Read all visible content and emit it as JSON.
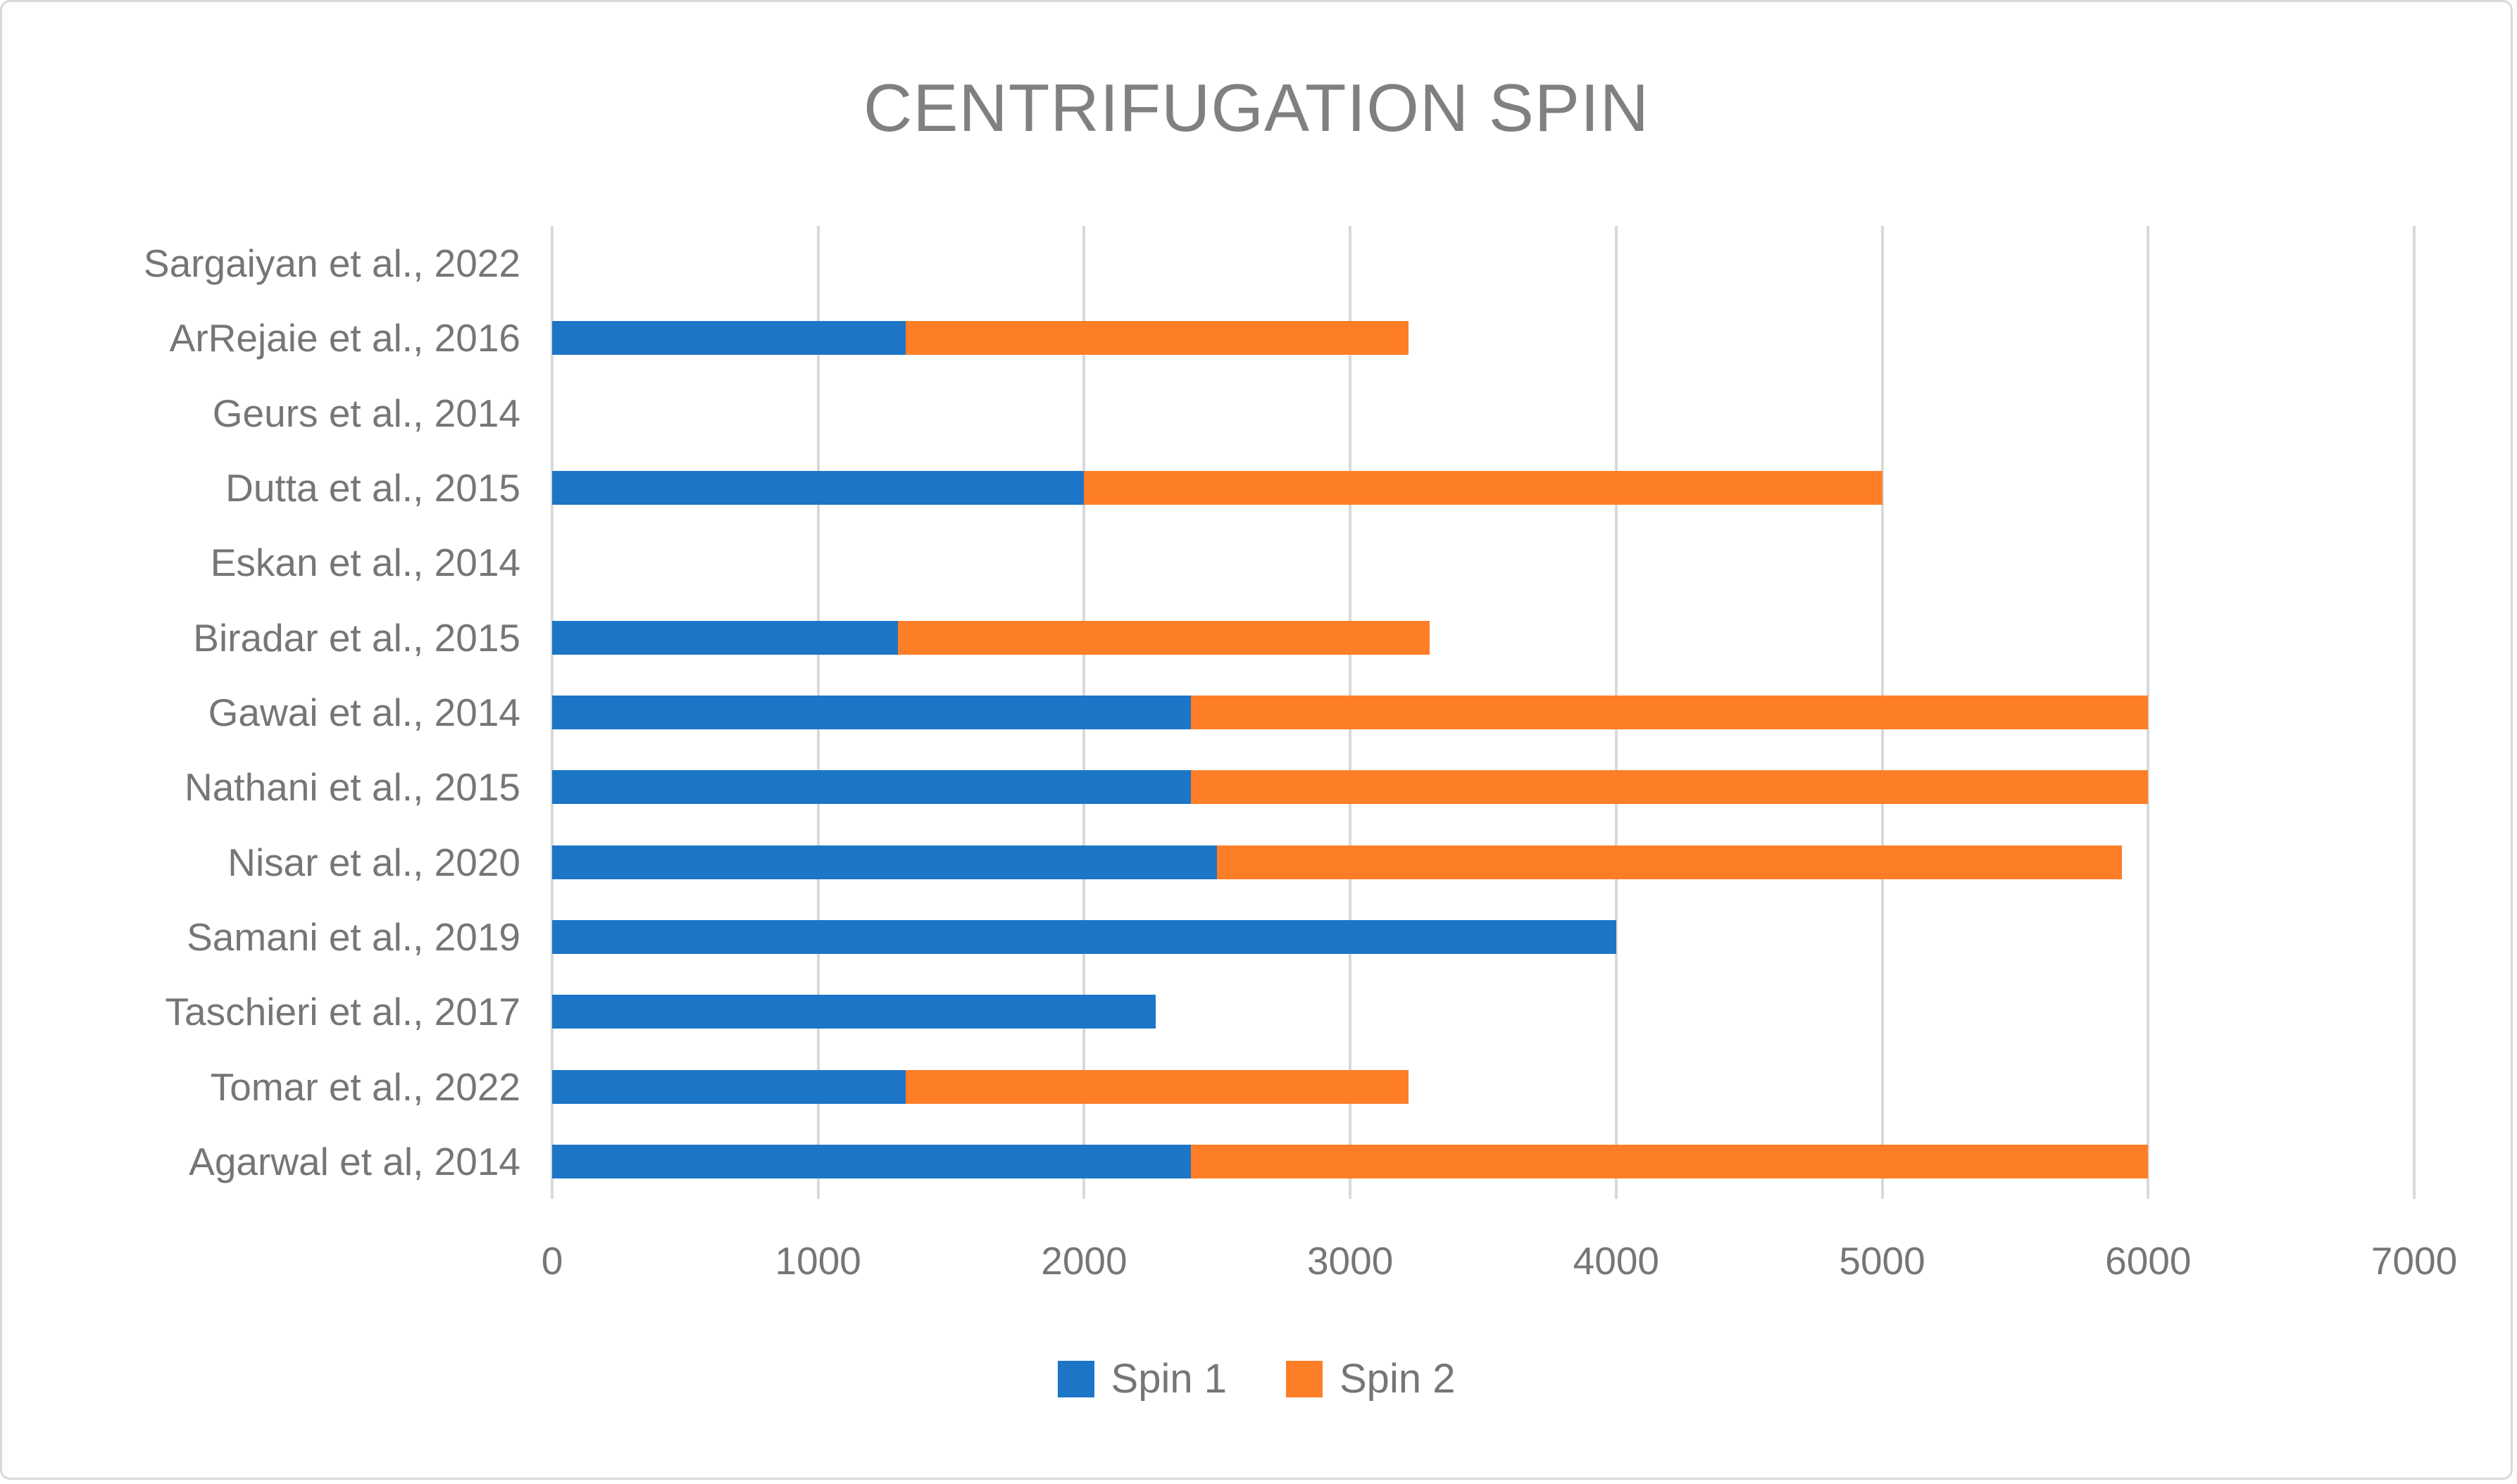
{
  "chart_data": {
    "type": "bar",
    "orientation": "horizontal-stacked",
    "title": "CENTRIFUGATION SPIN",
    "categories": [
      "Sargaiyan et al., 2022",
      "ArRejaie et al., 2016",
      "Geurs et al., 2014",
      "Dutta et al., 2015",
      "Eskan et al., 2014",
      "Biradar et al., 2015",
      "Gawai et al., 2014",
      "Nathani et al., 2015",
      "Nisar et al., 2020",
      "Samani et al., 2019",
      "Taschieri et al., 2017",
      "Tomar et al., 2022",
      "Agarwal et al, 2014"
    ],
    "series": [
      {
        "name": "Spin 1",
        "color": "#1c75c7",
        "values": [
          0,
          1330,
          0,
          2000,
          0,
          1300,
          2400,
          2400,
          2500,
          4000,
          2270,
          1330,
          2400
        ]
      },
      {
        "name": "Spin 2",
        "color": "#fd7e27",
        "values": [
          0,
          1890,
          0,
          3000,
          0,
          2000,
          3600,
          3600,
          3400,
          0,
          0,
          1890,
          3600
        ]
      }
    ],
    "x_axis": {
      "min": 0,
      "max": 7000,
      "tick_step": 1000,
      "tick_labels": [
        "0",
        "1000",
        "2000",
        "3000",
        "4000",
        "5000",
        "6000",
        "7000"
      ]
    },
    "legend_position": "bottom",
    "grid": "vertical",
    "colors": {
      "gridline": "#d9d9d9",
      "text": "#767676",
      "title_text": "#808080",
      "frame_border": "#d9d9d9",
      "background": "#ffffff"
    }
  }
}
